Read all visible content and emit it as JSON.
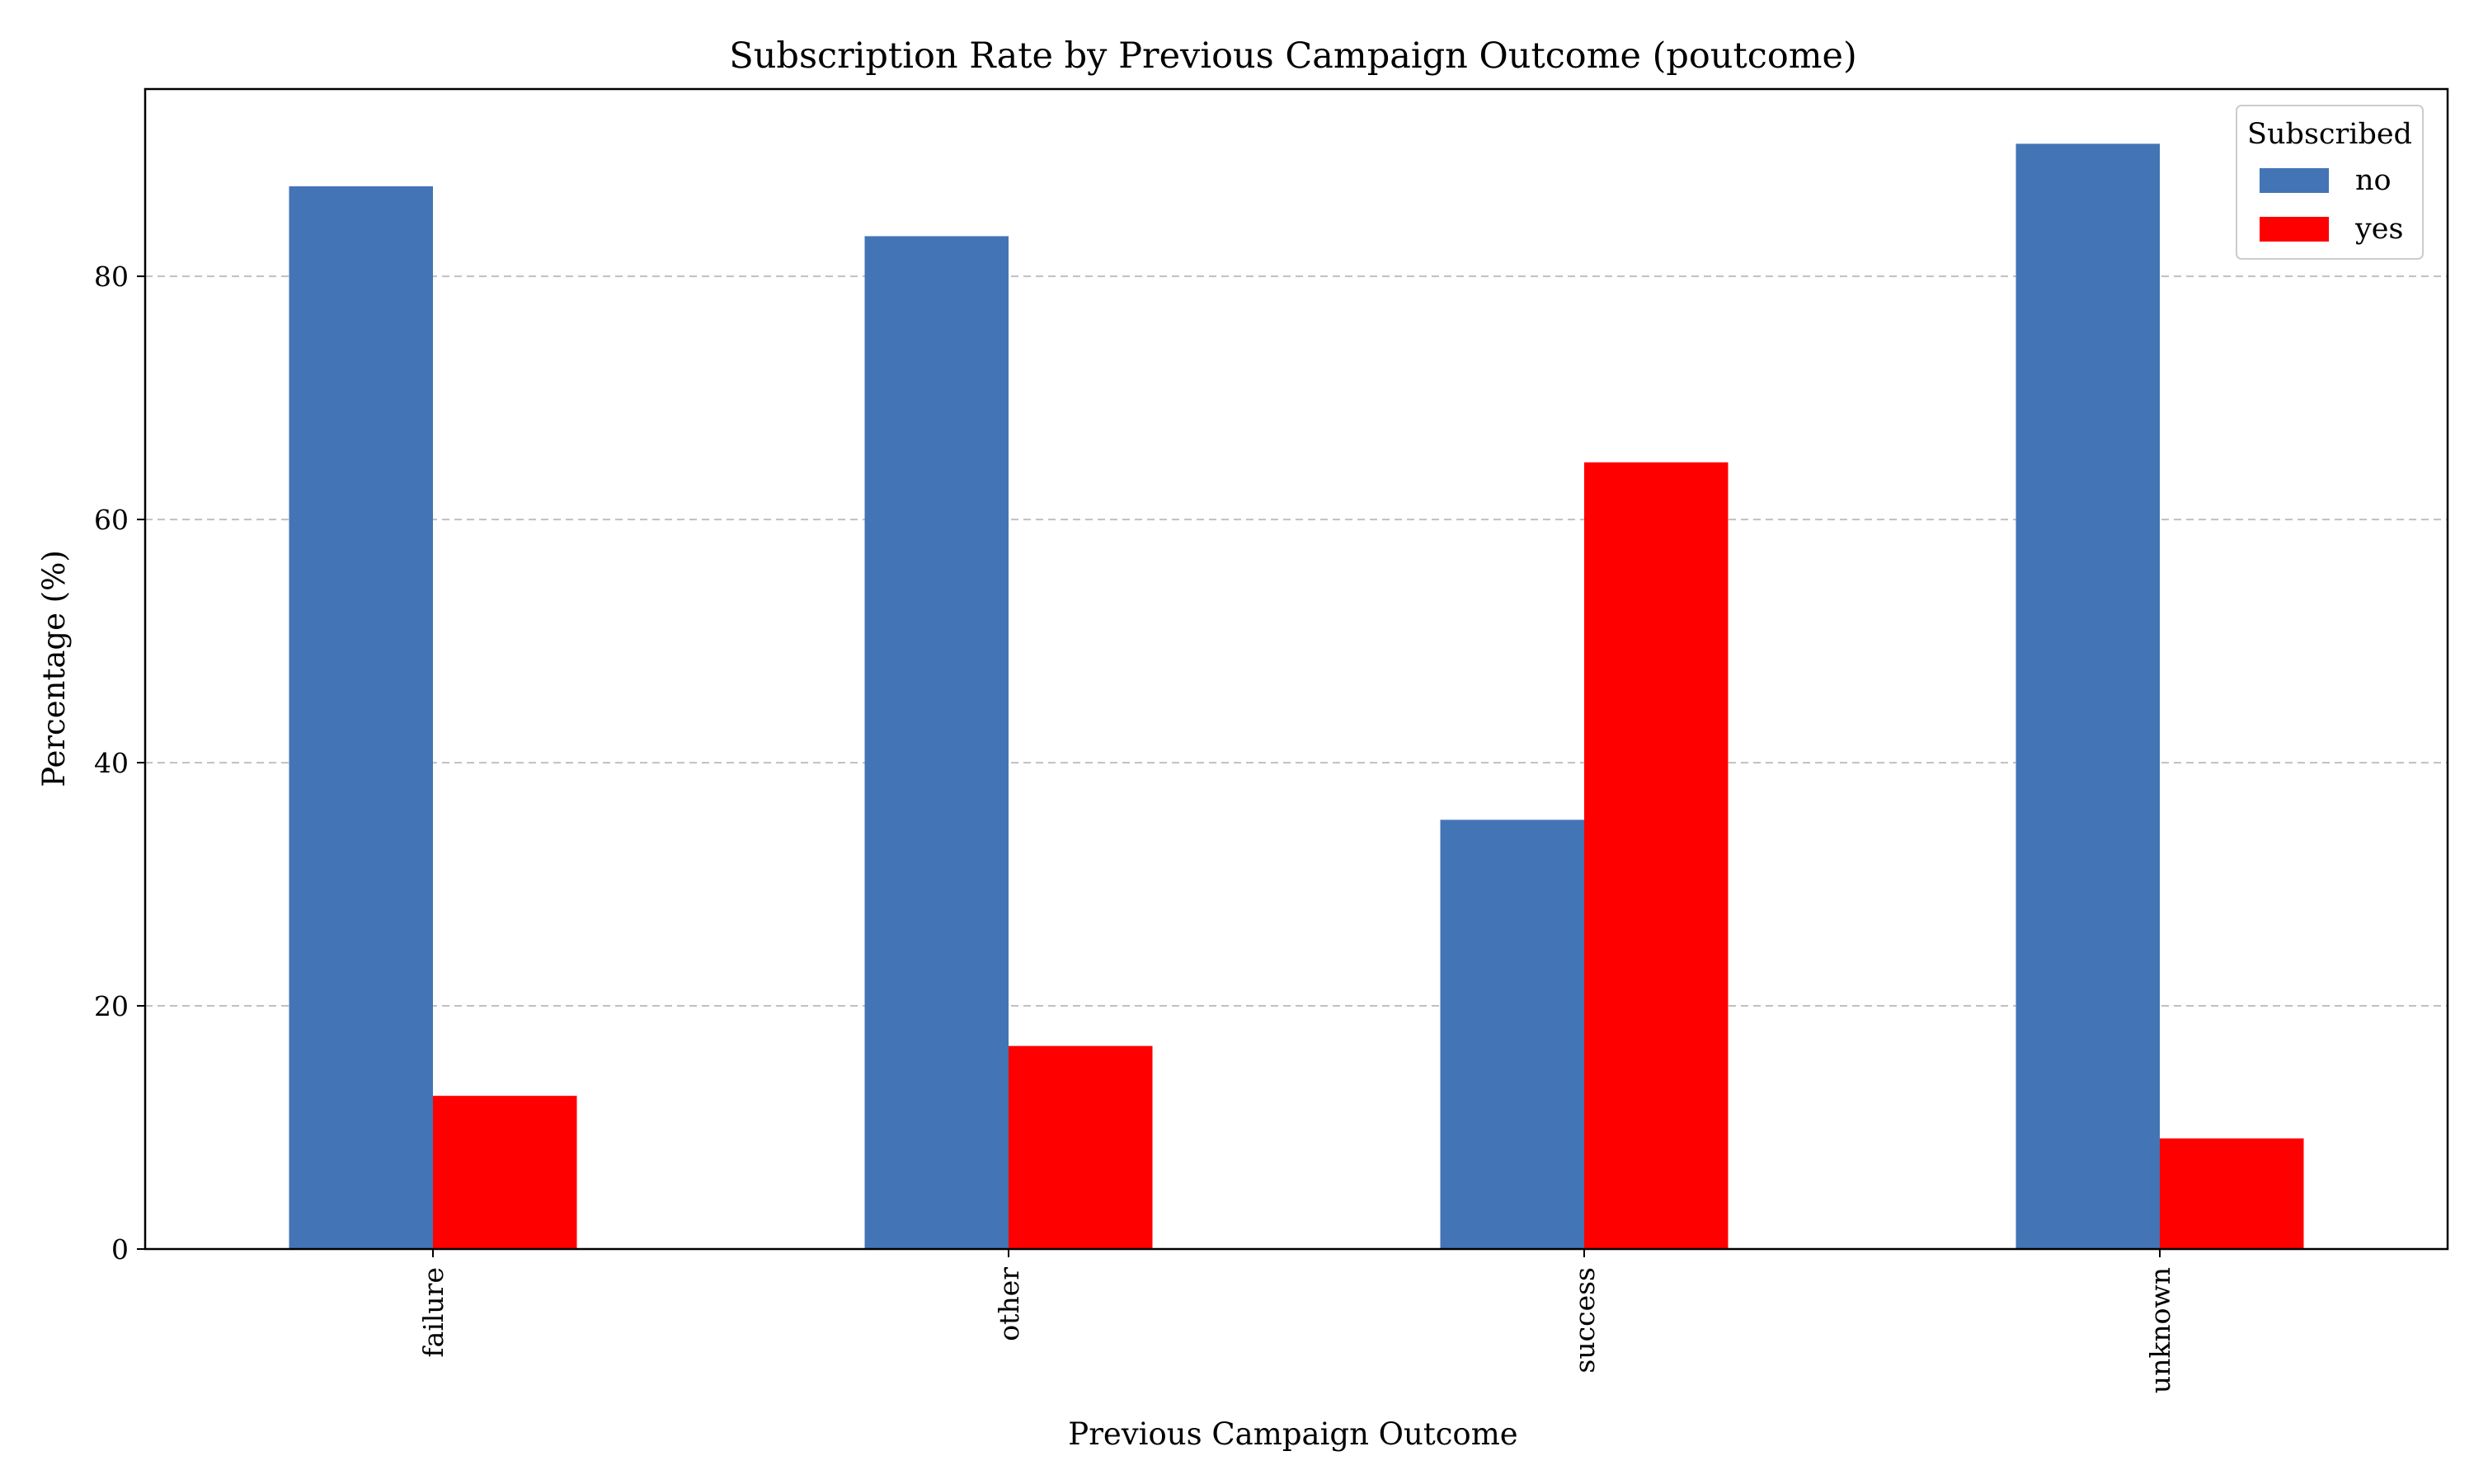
{
  "chart_data": {
    "type": "bar",
    "title": "Subscription Rate by Previous Campaign Outcome (poutcome)",
    "xlabel": "Previous Campaign Outcome",
    "ylabel": "Percentage (%)",
    "categories": [
      "failure",
      "other",
      "success",
      "unknown"
    ],
    "series": [
      {
        "name": "no",
        "color": "#4374b5",
        "values": [
          87.4,
          83.3,
          35.3,
          90.9
        ]
      },
      {
        "name": "yes",
        "color": "#ff0000",
        "values": [
          12.6,
          16.7,
          64.7,
          9.1
        ]
      }
    ],
    "ylim": [
      0,
      95.4
    ],
    "yticks": [
      0,
      20,
      40,
      60,
      80
    ],
    "grid": "y-dashed",
    "legend": {
      "title": "Subscribed",
      "placement": "top-right"
    }
  }
}
